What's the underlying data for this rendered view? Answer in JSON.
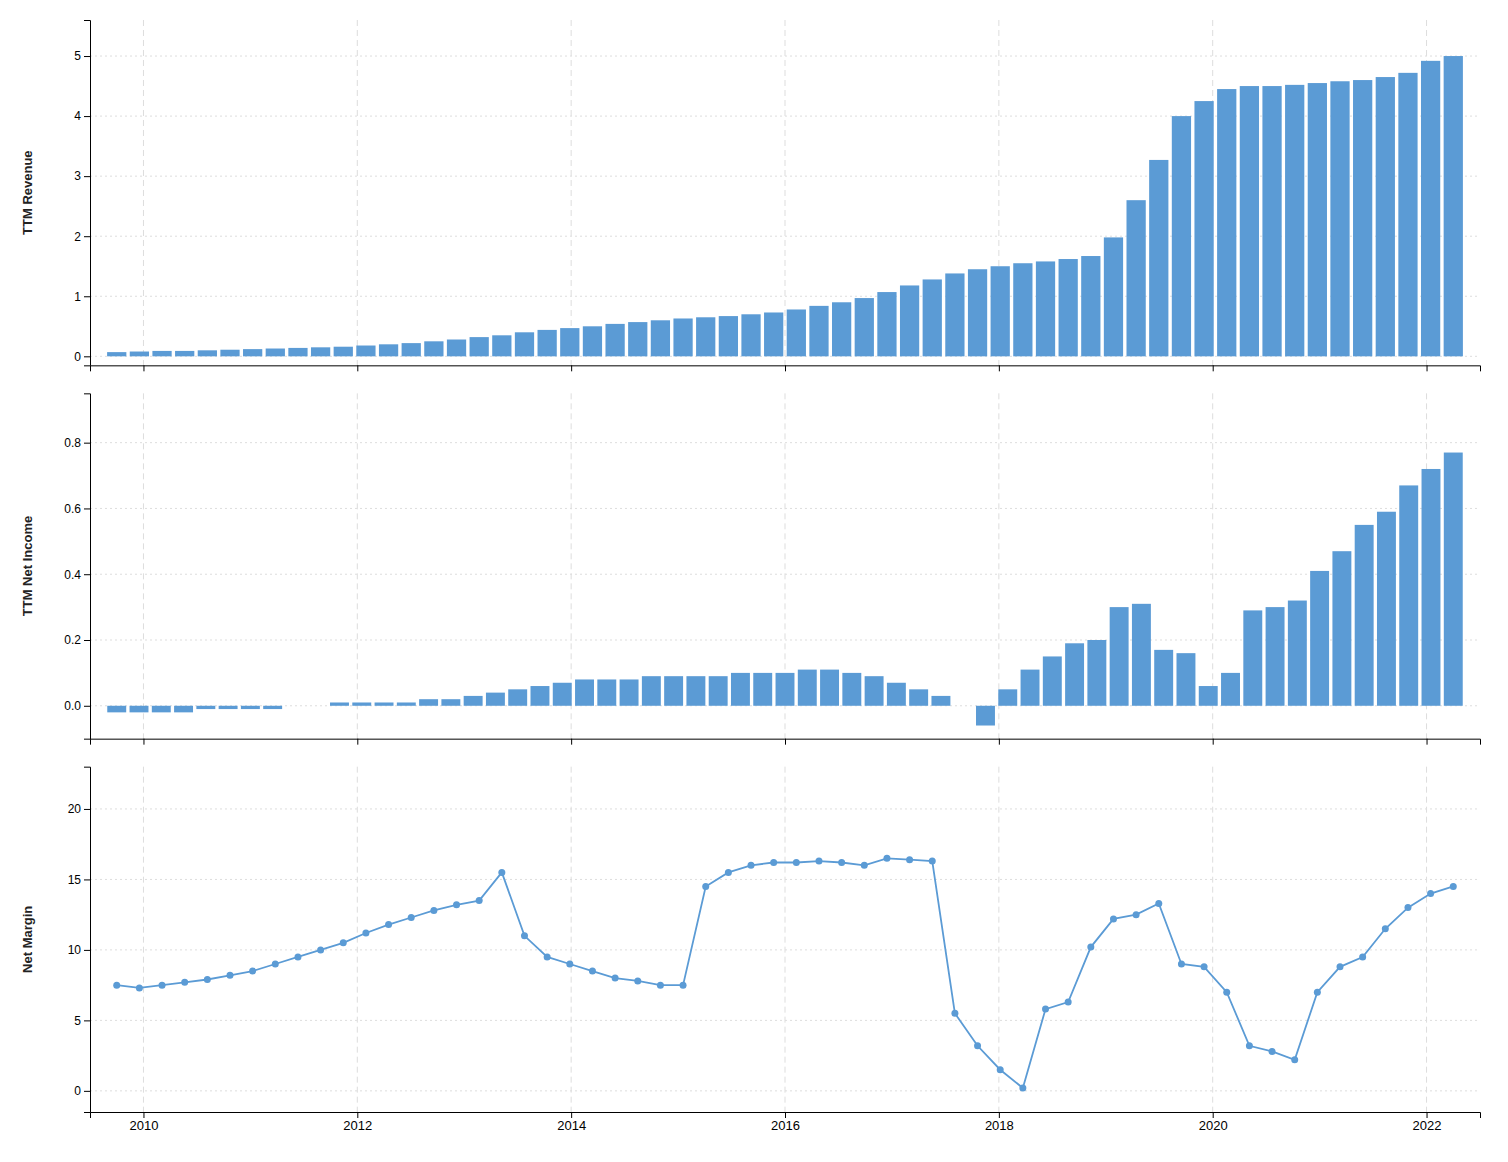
{
  "chart_data": [
    {
      "type": "bar",
      "ylabel": "TTM Revenue",
      "x": [
        2009.75,
        2009.961864,
        2010.173729,
        2010.385593,
        2010.597458,
        2010.809322,
        2011.021186,
        2011.233051,
        2011.444915,
        2011.65678,
        2011.868644,
        2012.080508,
        2012.292373,
        2012.504237,
        2012.716102,
        2012.927966,
        2013.139831,
        2013.351695,
        2013.563559,
        2013.775424,
        2013.987288,
        2014.199153,
        2014.411017,
        2014.622881,
        2014.834746,
        2015.04661,
        2015.258475,
        2015.470339,
        2015.682203,
        2015.894068,
        2016.105932,
        2016.317797,
        2016.529661,
        2016.741525,
        2016.95339,
        2017.165254,
        2017.377119,
        2017.588983,
        2017.800847,
        2018.012712,
        2018.224576,
        2018.436441,
        2018.648305,
        2018.860169,
        2019.072034,
        2019.283898,
        2019.495763,
        2019.707627,
        2019.919492,
        2020.131356,
        2020.34322,
        2020.555085,
        2020.766949,
        2020.978814,
        2021.190678,
        2021.402542,
        2021.614407,
        2021.826271,
        2022.038136,
        2022.25
      ],
      "values": [
        0.07,
        0.08,
        0.09,
        0.09,
        0.1,
        0.11,
        0.12,
        0.13,
        0.14,
        0.15,
        0.16,
        0.18,
        0.2,
        0.22,
        0.25,
        0.28,
        0.32,
        0.35,
        0.4,
        0.44,
        0.47,
        0.5,
        0.54,
        0.57,
        0.6,
        0.63,
        0.65,
        0.67,
        0.7,
        0.73,
        0.78,
        0.84,
        0.9,
        0.97,
        1.07,
        1.18,
        1.28,
        1.38,
        1.45,
        1.5,
        1.55,
        1.58,
        1.62,
        1.67,
        1.98,
        2.6,
        3.27,
        4.0,
        4.25,
        4.45,
        4.5,
        4.5,
        4.52,
        4.55,
        4.58,
        4.6,
        4.65,
        4.72,
        4.92,
        5.0
      ],
      "color": "#5B9BD5",
      "xlim": [
        2009.5,
        2022.5
      ],
      "xticks": [
        2010,
        2012,
        2014,
        2016,
        2018,
        2020,
        2022
      ],
      "ylim": [
        -0.15,
        5.6
      ],
      "yticks": [
        0,
        1,
        2,
        3,
        4,
        5
      ],
      "grid": true,
      "tick_labels": "y"
    },
    {
      "type": "bar",
      "ylabel": "TTM Net Income",
      "x": [
        2009.75,
        2009.958333,
        2010.166667,
        2010.375,
        2010.583333,
        2010.791667,
        2011.0,
        2011.208333,
        2011.416667,
        2011.625,
        2011.833333,
        2012.041667,
        2012.25,
        2012.458333,
        2012.666667,
        2012.875,
        2013.083333,
        2013.291667,
        2013.5,
        2013.708333,
        2013.916667,
        2014.125,
        2014.333333,
        2014.541667,
        2014.75,
        2014.958333,
        2015.166667,
        2015.375,
        2015.583333,
        2015.791667,
        2016.0,
        2016.208333,
        2016.416667,
        2016.625,
        2016.833333,
        2017.041667,
        2017.25,
        2017.458333,
        2017.666667,
        2017.875,
        2018.083333,
        2018.291667,
        2018.5,
        2018.708333,
        2018.916667,
        2019.125,
        2019.333333,
        2019.541667,
        2019.75,
        2019.958333,
        2020.166667,
        2020.375,
        2020.583333,
        2020.791667,
        2021.0,
        2021.208333,
        2021.416667,
        2021.625,
        2021.833333,
        2022.041667,
        2022.25
      ],
      "values": [
        -0.02,
        -0.02,
        -0.02,
        -0.02,
        -0.01,
        -0.01,
        -0.01,
        -0.01,
        0.0,
        0.0,
        0.01,
        0.01,
        0.01,
        0.01,
        0.02,
        0.02,
        0.03,
        0.04,
        0.05,
        0.06,
        0.07,
        0.08,
        0.08,
        0.08,
        0.09,
        0.09,
        0.09,
        0.09,
        0.1,
        0.1,
        0.1,
        0.11,
        0.11,
        0.1,
        0.09,
        0.07,
        0.05,
        0.03,
        0.0,
        -0.06,
        0.05,
        0.11,
        0.15,
        0.19,
        0.2,
        0.3,
        0.31,
        0.17,
        0.16,
        0.06,
        0.1,
        0.29,
        0.3,
        0.32,
        0.41,
        0.47,
        0.55,
        0.59,
        0.67,
        0.72,
        0.77
      ],
      "color": "#5B9BD5",
      "xlim": [
        2009.5,
        2022.5
      ],
      "xticks": [
        2010,
        2012,
        2014,
        2016,
        2018,
        2020,
        2022
      ],
      "ylim": [
        -0.1,
        0.95
      ],
      "yticks": [
        {
          "value": 0.0,
          "label": "0.0"
        },
        0.2,
        0.4,
        0.6,
        0.8
      ],
      "grid": true,
      "tick_labels": "y"
    },
    {
      "type": "line",
      "ylabel": "Net Margin",
      "x": [
        2009.75,
        2009.961864,
        2010.173729,
        2010.385593,
        2010.597458,
        2010.809322,
        2011.021186,
        2011.233051,
        2011.444915,
        2011.65678,
        2011.868644,
        2012.080508,
        2012.292373,
        2012.504237,
        2012.716102,
        2012.927966,
        2013.139831,
        2013.351695,
        2013.563559,
        2013.775424,
        2013.987288,
        2014.199153,
        2014.411017,
        2014.622881,
        2014.834746,
        2015.04661,
        2015.258475,
        2015.470339,
        2015.682203,
        2015.894068,
        2016.105932,
        2016.317797,
        2016.529661,
        2016.741525,
        2016.95339,
        2017.165254,
        2017.377119,
        2017.588983,
        2017.800847,
        2018.012712,
        2018.224576,
        2018.436441,
        2018.648305,
        2018.860169,
        2019.072034,
        2019.283898,
        2019.495763,
        2019.707627,
        2019.919492,
        2020.131356,
        2020.34322,
        2020.555085,
        2020.766949,
        2020.978814,
        2021.190678,
        2021.402542,
        2021.614407,
        2021.826271,
        2022.038136,
        2022.25
      ],
      "values": [
        7.5,
        7.3,
        7.5,
        7.7,
        7.9,
        8.2,
        8.5,
        9.0,
        9.5,
        10.0,
        10.5,
        11.2,
        11.8,
        12.3,
        12.8,
        13.2,
        13.5,
        15.5,
        11.0,
        9.5,
        9.0,
        8.5,
        8.0,
        7.8,
        7.5,
        7.5,
        14.5,
        15.5,
        16.0,
        16.2,
        16.2,
        16.3,
        16.2,
        16.0,
        16.5,
        16.4,
        16.3,
        5.5,
        3.2,
        1.5,
        0.2,
        5.8,
        6.3,
        10.2,
        12.2,
        12.5,
        13.3,
        9.0,
        8.8,
        7.0,
        3.2,
        2.8,
        2.2,
        7.0,
        8.8,
        9.5,
        11.5,
        13.0,
        14.0,
        14.5
      ],
      "color": "#5B9BD5",
      "marker": "circle",
      "xlim": [
        2009.5,
        2022.5
      ],
      "xticks": [
        2010,
        2012,
        2014,
        2016,
        2018,
        2020,
        2022
      ],
      "ylim": [
        -1.5,
        23.0
      ],
      "yticks": [
        0,
        5,
        10,
        15,
        20
      ],
      "grid": true
    }
  ]
}
